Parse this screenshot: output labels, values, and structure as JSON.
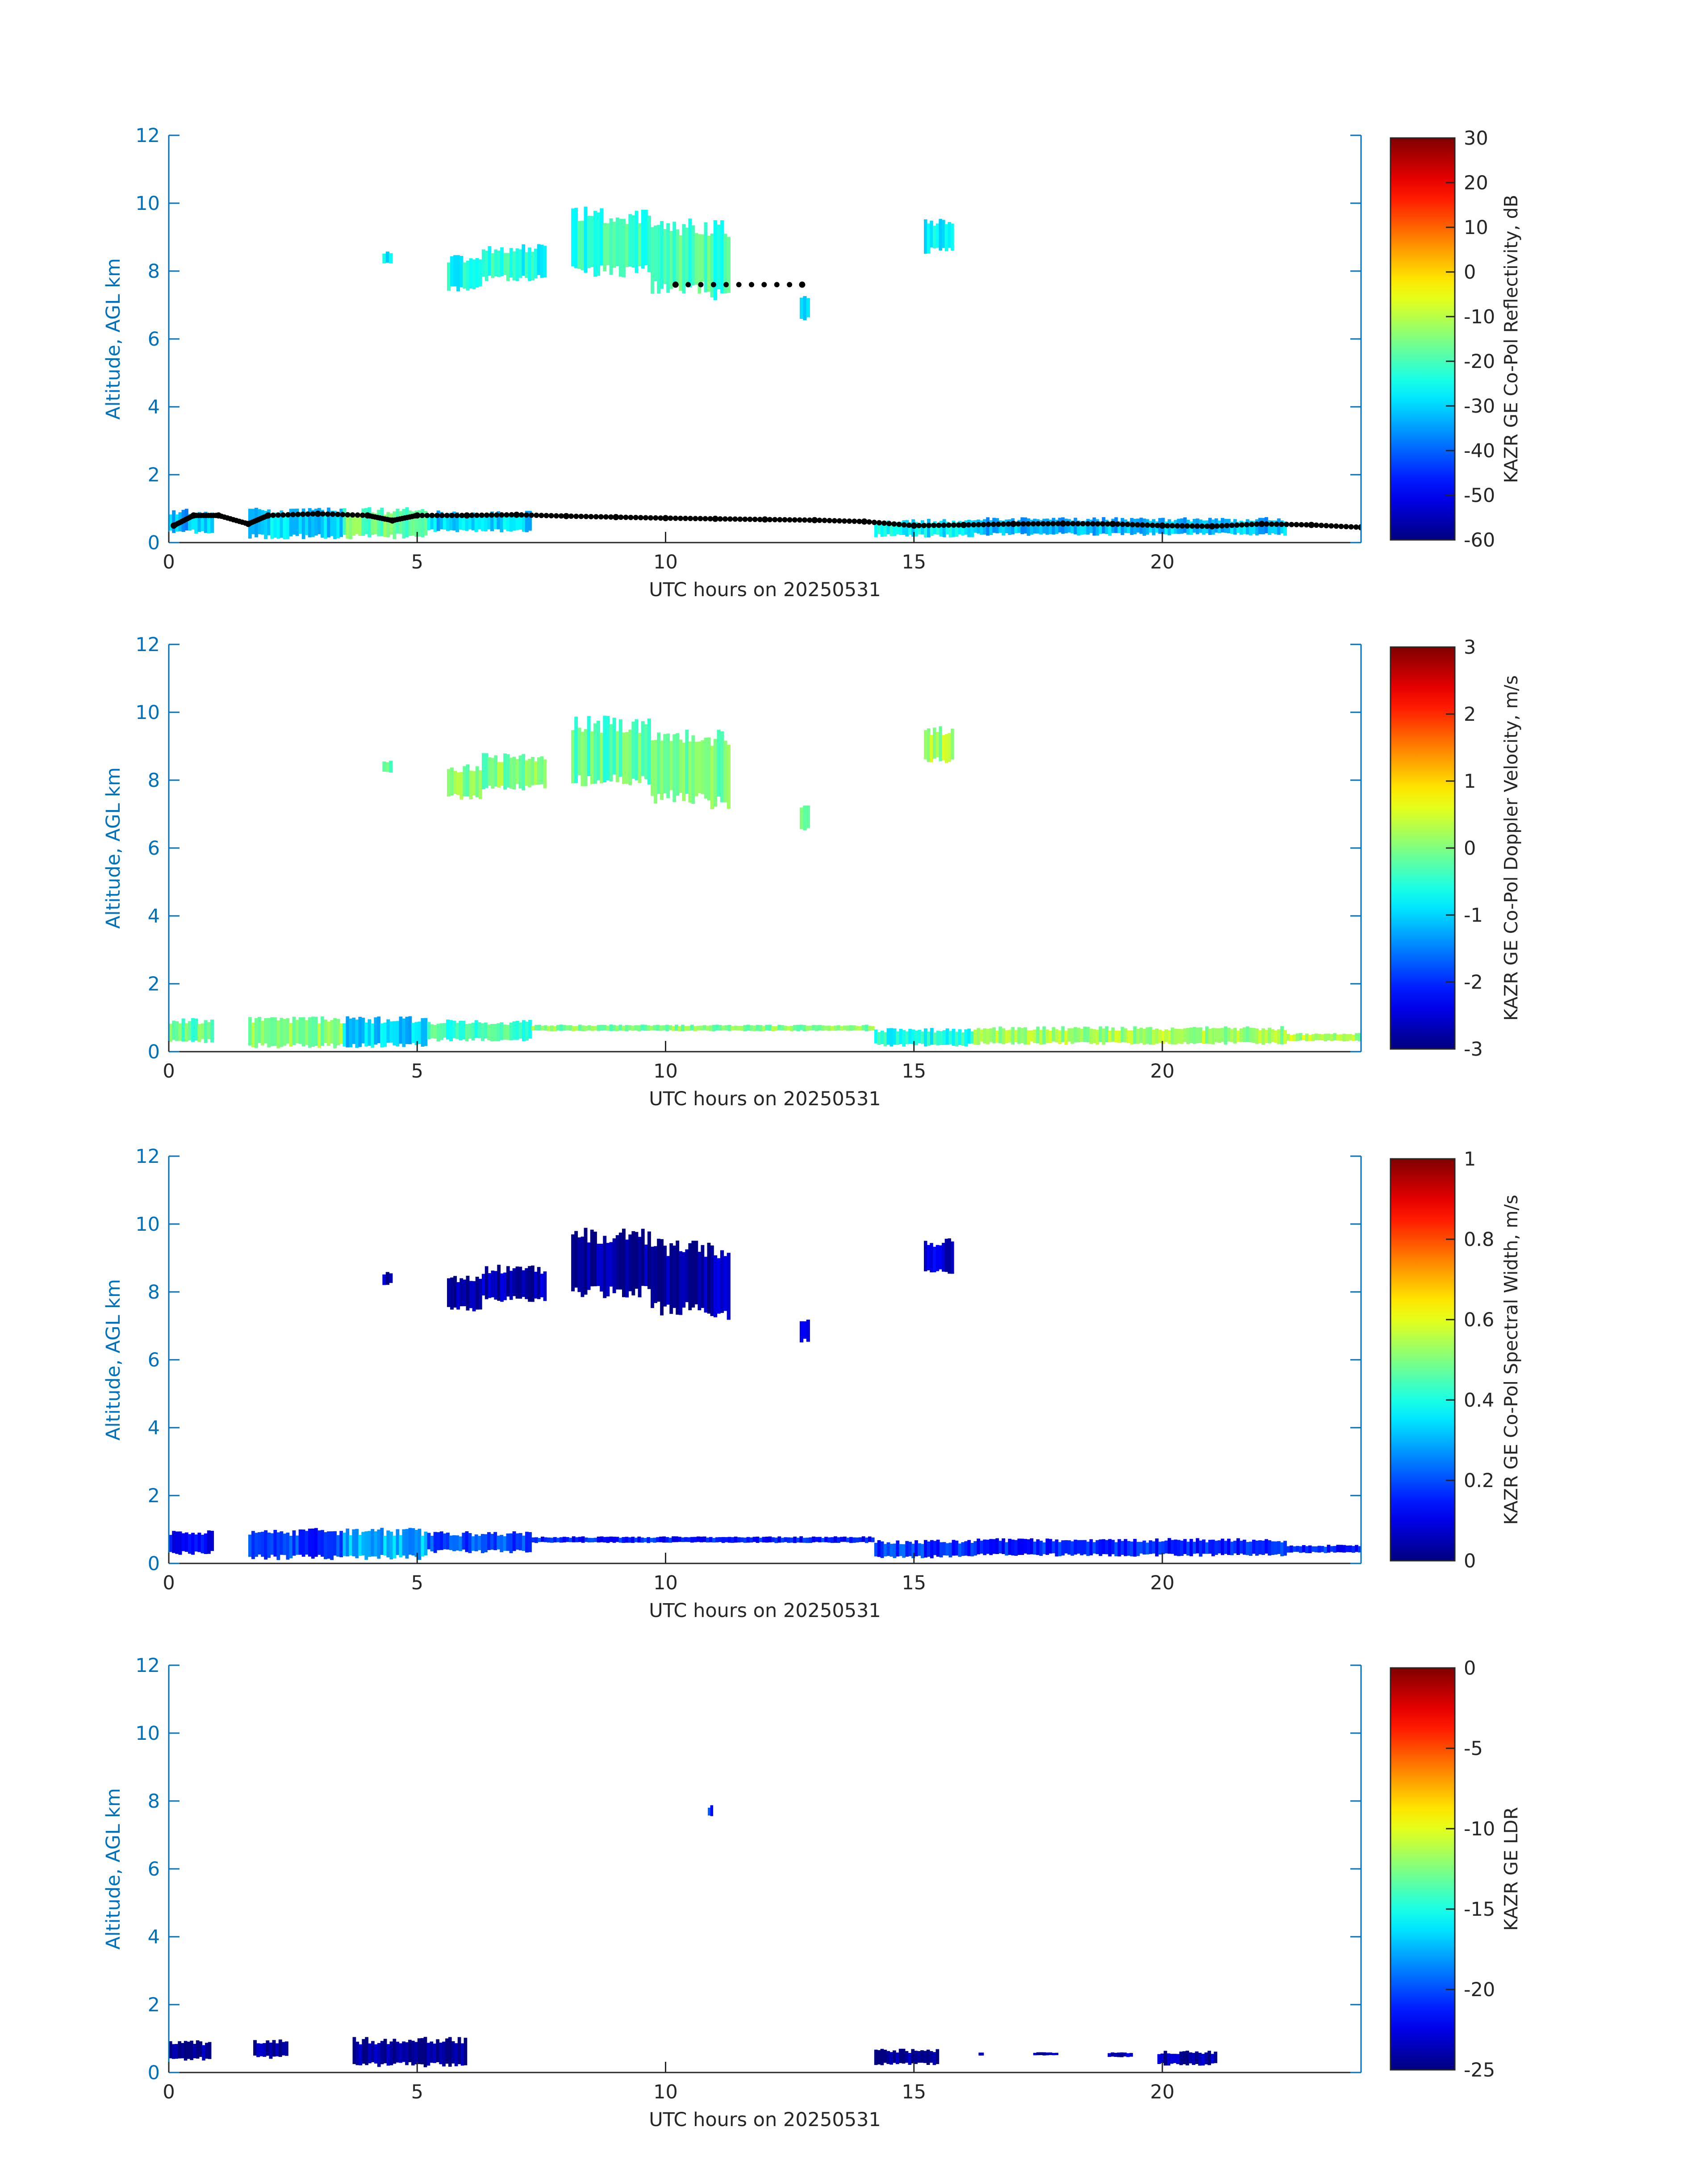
{
  "colors": {
    "axis": "#0072BD",
    "tick_label_x": "#262626",
    "colormap": "jet",
    "overlay_points": "#000000"
  },
  "chart_data": [
    {
      "type": "heatmap",
      "title": "",
      "xlabel": "UTC hours on 20250531",
      "ylabel": "Altitude, AGL km",
      "xlim": [
        0,
        24
      ],
      "ylim": [
        0,
        12
      ],
      "xticks": [
        0,
        5,
        10,
        15,
        20
      ],
      "yticks": [
        0,
        2,
        4,
        6,
        8,
        10,
        12
      ],
      "colorbar": {
        "label": "KAZR GE Co-Pol Reflectivity, dB",
        "range": [
          -60,
          30
        ],
        "ticks": [
          -60,
          -50,
          -40,
          -30,
          -20,
          -10,
          0,
          10,
          20,
          30
        ]
      },
      "regions": [
        {
          "x": [
            0,
            0.9
          ],
          "y": [
            0.25,
            1.0
          ],
          "value": -33
        },
        {
          "x": [
            1.6,
            3.5
          ],
          "y": [
            0.1,
            1.05
          ],
          "value": -30
        },
        {
          "x": [
            3.5,
            5.2
          ],
          "y": [
            0.1,
            1.05
          ],
          "value": -17
        },
        {
          "x": [
            5.2,
            7.3
          ],
          "y": [
            0.3,
            0.95
          ],
          "value": -30
        },
        {
          "x": [
            14.2,
            16.2
          ],
          "y": [
            0.15,
            0.7
          ],
          "value": -27
        },
        {
          "x": [
            16.2,
            22.5
          ],
          "y": [
            0.2,
            0.75
          ],
          "value": -32
        },
        {
          "x": [
            4.3,
            4.5
          ],
          "y": [
            8.2,
            8.6
          ],
          "value": -28
        },
        {
          "x": [
            5.6,
            6.3
          ],
          "y": [
            7.4,
            8.5
          ],
          "value": -25
        },
        {
          "x": [
            6.3,
            7.6
          ],
          "y": [
            7.7,
            8.8
          ],
          "value": -24
        },
        {
          "x": [
            8.1,
            9.7
          ],
          "y": [
            7.8,
            9.9
          ],
          "value": -22
        },
        {
          "x": [
            9.7,
            10.9
          ],
          "y": [
            7.3,
            9.6
          ],
          "value": -20
        },
        {
          "x": [
            10.9,
            11.3
          ],
          "y": [
            7.1,
            9.6
          ],
          "value": -22
        },
        {
          "x": [
            12.7,
            12.9
          ],
          "y": [
            6.5,
            7.3
          ],
          "value": -28
        },
        {
          "x": [
            15.2,
            15.8
          ],
          "y": [
            8.5,
            9.6
          ],
          "value": -28
        }
      ],
      "overlay_points": [
        {
          "x": 0.1,
          "y": 0.5
        },
        {
          "x": 0.5,
          "y": 0.8
        },
        {
          "x": 1.0,
          "y": 0.8
        },
        {
          "x": 1.6,
          "y": 0.55
        },
        {
          "x": 2.0,
          "y": 0.8
        },
        {
          "x": 3.0,
          "y": 0.85
        },
        {
          "x": 4.0,
          "y": 0.8
        },
        {
          "x": 4.5,
          "y": 0.65
        },
        {
          "x": 5.0,
          "y": 0.8
        },
        {
          "x": 6.0,
          "y": 0.8
        },
        {
          "x": 7.0,
          "y": 0.82
        },
        {
          "x": 8.0,
          "y": 0.78
        },
        {
          "x": 9.0,
          "y": 0.75
        },
        {
          "x": 10.0,
          "y": 0.72
        },
        {
          "x": 11.0,
          "y": 0.7
        },
        {
          "x": 12.0,
          "y": 0.68
        },
        {
          "x": 13.0,
          "y": 0.66
        },
        {
          "x": 14.0,
          "y": 0.62
        },
        {
          "x": 15.0,
          "y": 0.5
        },
        {
          "x": 16.0,
          "y": 0.52
        },
        {
          "x": 17.0,
          "y": 0.55
        },
        {
          "x": 18.0,
          "y": 0.56
        },
        {
          "x": 19.0,
          "y": 0.55
        },
        {
          "x": 20.0,
          "y": 0.5
        },
        {
          "x": 21.0,
          "y": 0.48
        },
        {
          "x": 22.0,
          "y": 0.55
        },
        {
          "x": 23.0,
          "y": 0.52
        },
        {
          "x": 24.0,
          "y": 0.45
        },
        {
          "x": 10.2,
          "y": 7.6
        },
        {
          "x": 12.75,
          "y": 7.6
        }
      ]
    },
    {
      "type": "heatmap",
      "title": "",
      "xlabel": "UTC hours on 20250531",
      "ylabel": "Altitude, AGL km",
      "xlim": [
        0,
        24
      ],
      "ylim": [
        0,
        12
      ],
      "xticks": [
        0,
        5,
        10,
        15,
        20
      ],
      "yticks": [
        0,
        2,
        4,
        6,
        8,
        10,
        12
      ],
      "colorbar": {
        "label": "KAZR GE Co-Pol Doppler Velocity, m/s",
        "range": [
          -3,
          3
        ],
        "ticks": [
          -3,
          -2,
          -1,
          0,
          1,
          2,
          3
        ]
      },
      "regions": [
        {
          "x": [
            0,
            0.9
          ],
          "y": [
            0.25,
            1.0
          ],
          "value": -0.2
        },
        {
          "x": [
            1.6,
            3.5
          ],
          "y": [
            0.1,
            1.05
          ],
          "value": 0.1
        },
        {
          "x": [
            3.5,
            5.2
          ],
          "y": [
            0.1,
            1.05
          ],
          "value": -1.0
        },
        {
          "x": [
            5.2,
            7.3
          ],
          "y": [
            0.3,
            0.95
          ],
          "value": -0.4
        },
        {
          "x": [
            7.3,
            14.2
          ],
          "y": [
            0.6,
            0.8
          ],
          "value": 0.0
        },
        {
          "x": [
            14.2,
            16.2
          ],
          "y": [
            0.15,
            0.7
          ],
          "value": -0.6
        },
        {
          "x": [
            16.2,
            22.5
          ],
          "y": [
            0.2,
            0.75
          ],
          "value": 0.2
        },
        {
          "x": [
            22.5,
            24.0
          ],
          "y": [
            0.3,
            0.55
          ],
          "value": 0.3
        },
        {
          "x": [
            4.3,
            4.5
          ],
          "y": [
            8.2,
            8.6
          ],
          "value": -0.2
        },
        {
          "x": [
            5.6,
            6.3
          ],
          "y": [
            7.4,
            8.5
          ],
          "value": 0.0
        },
        {
          "x": [
            6.3,
            7.6
          ],
          "y": [
            7.7,
            8.8
          ],
          "value": 0.0
        },
        {
          "x": [
            8.1,
            9.7
          ],
          "y": [
            7.8,
            9.9
          ],
          "value": -0.2
        },
        {
          "x": [
            9.7,
            10.9
          ],
          "y": [
            7.3,
            9.6
          ],
          "value": -0.1
        },
        {
          "x": [
            10.9,
            11.3
          ],
          "y": [
            7.1,
            9.6
          ],
          "value": -0.1
        },
        {
          "x": [
            12.7,
            12.9
          ],
          "y": [
            6.5,
            7.3
          ],
          "value": 0.0
        },
        {
          "x": [
            15.2,
            15.8
          ],
          "y": [
            8.5,
            9.6
          ],
          "value": 0.2
        }
      ]
    },
    {
      "type": "heatmap",
      "title": "",
      "xlabel": "UTC hours on 20250531",
      "ylabel": "Altitude, AGL km",
      "xlim": [
        0,
        24
      ],
      "ylim": [
        0,
        12
      ],
      "xticks": [
        0,
        5,
        10,
        15,
        20
      ],
      "yticks": [
        0,
        2,
        4,
        6,
        8,
        10,
        12
      ],
      "colorbar": {
        "label": "KAZR GE Co-Pol Spectral Width, m/s",
        "range": [
          0,
          1
        ],
        "ticks": [
          0,
          0.2,
          0.4,
          0.6,
          0.8,
          1
        ]
      },
      "regions": [
        {
          "x": [
            0,
            0.9
          ],
          "y": [
            0.25,
            1.0
          ],
          "value": 0.12
        },
        {
          "x": [
            1.6,
            3.5
          ],
          "y": [
            0.1,
            1.05
          ],
          "value": 0.18
        },
        {
          "x": [
            3.5,
            5.2
          ],
          "y": [
            0.1,
            1.05
          ],
          "value": 0.3
        },
        {
          "x": [
            5.2,
            7.3
          ],
          "y": [
            0.3,
            0.95
          ],
          "value": 0.2
        },
        {
          "x": [
            7.3,
            14.2
          ],
          "y": [
            0.6,
            0.8
          ],
          "value": 0.15
        },
        {
          "x": [
            14.2,
            16.2
          ],
          "y": [
            0.15,
            0.7
          ],
          "value": 0.18
        },
        {
          "x": [
            16.2,
            22.5
          ],
          "y": [
            0.2,
            0.75
          ],
          "value": 0.16
        },
        {
          "x": [
            22.5,
            24.0
          ],
          "y": [
            0.3,
            0.55
          ],
          "value": 0.16
        },
        {
          "x": [
            4.3,
            4.5
          ],
          "y": [
            8.2,
            8.6
          ],
          "value": 0.05
        },
        {
          "x": [
            5.6,
            6.3
          ],
          "y": [
            7.4,
            8.5
          ],
          "value": 0.05
        },
        {
          "x": [
            6.3,
            7.6
          ],
          "y": [
            7.7,
            8.8
          ],
          "value": 0.05
        },
        {
          "x": [
            8.1,
            9.7
          ],
          "y": [
            7.8,
            9.9
          ],
          "value": 0.03
        },
        {
          "x": [
            9.7,
            10.9
          ],
          "y": [
            7.3,
            9.6
          ],
          "value": 0.03
        },
        {
          "x": [
            10.9,
            11.3
          ],
          "y": [
            7.1,
            9.6
          ],
          "value": 0.05
        },
        {
          "x": [
            12.7,
            12.9
          ],
          "y": [
            6.5,
            7.3
          ],
          "value": 0.08
        },
        {
          "x": [
            15.2,
            15.8
          ],
          "y": [
            8.5,
            9.6
          ],
          "value": 0.08
        }
      ]
    },
    {
      "type": "heatmap",
      "title": "",
      "xlabel": "UTC hours on 20250531",
      "ylabel": "Altitude, AGL km",
      "xlim": [
        0,
        24
      ],
      "ylim": [
        0,
        12
      ],
      "xticks": [
        0,
        5,
        10,
        15,
        20
      ],
      "yticks": [
        0,
        2,
        4,
        6,
        8,
        10,
        12
      ],
      "colorbar": {
        "label": "KAZR GE LDR",
        "range": [
          -25,
          0
        ],
        "ticks": [
          -25,
          -20,
          -15,
          -10,
          -5,
          0
        ]
      },
      "regions": [
        {
          "x": [
            0,
            0.85
          ],
          "y": [
            0.35,
            0.95
          ],
          "value": -24.5
        },
        {
          "x": [
            1.7,
            2.4
          ],
          "y": [
            0.4,
            1.0
          ],
          "value": -24.5
        },
        {
          "x": [
            3.7,
            6.0
          ],
          "y": [
            0.15,
            1.05
          ],
          "value": -24.5
        },
        {
          "x": [
            14.2,
            15.5
          ],
          "y": [
            0.2,
            0.7
          ],
          "value": -24.5
        },
        {
          "x": [
            16.3,
            16.4
          ],
          "y": [
            0.5,
            0.6
          ],
          "value": -23.5
        },
        {
          "x": [
            17.4,
            17.9
          ],
          "y": [
            0.5,
            0.6
          ],
          "value": -23.5
        },
        {
          "x": [
            18.9,
            19.4
          ],
          "y": [
            0.45,
            0.6
          ],
          "value": -23.5
        },
        {
          "x": [
            19.9,
            21.1
          ],
          "y": [
            0.2,
            0.65
          ],
          "value": -24.0
        },
        {
          "x": [
            10.85,
            10.95
          ],
          "y": [
            7.5,
            7.9
          ],
          "value": -21.0
        }
      ]
    }
  ]
}
